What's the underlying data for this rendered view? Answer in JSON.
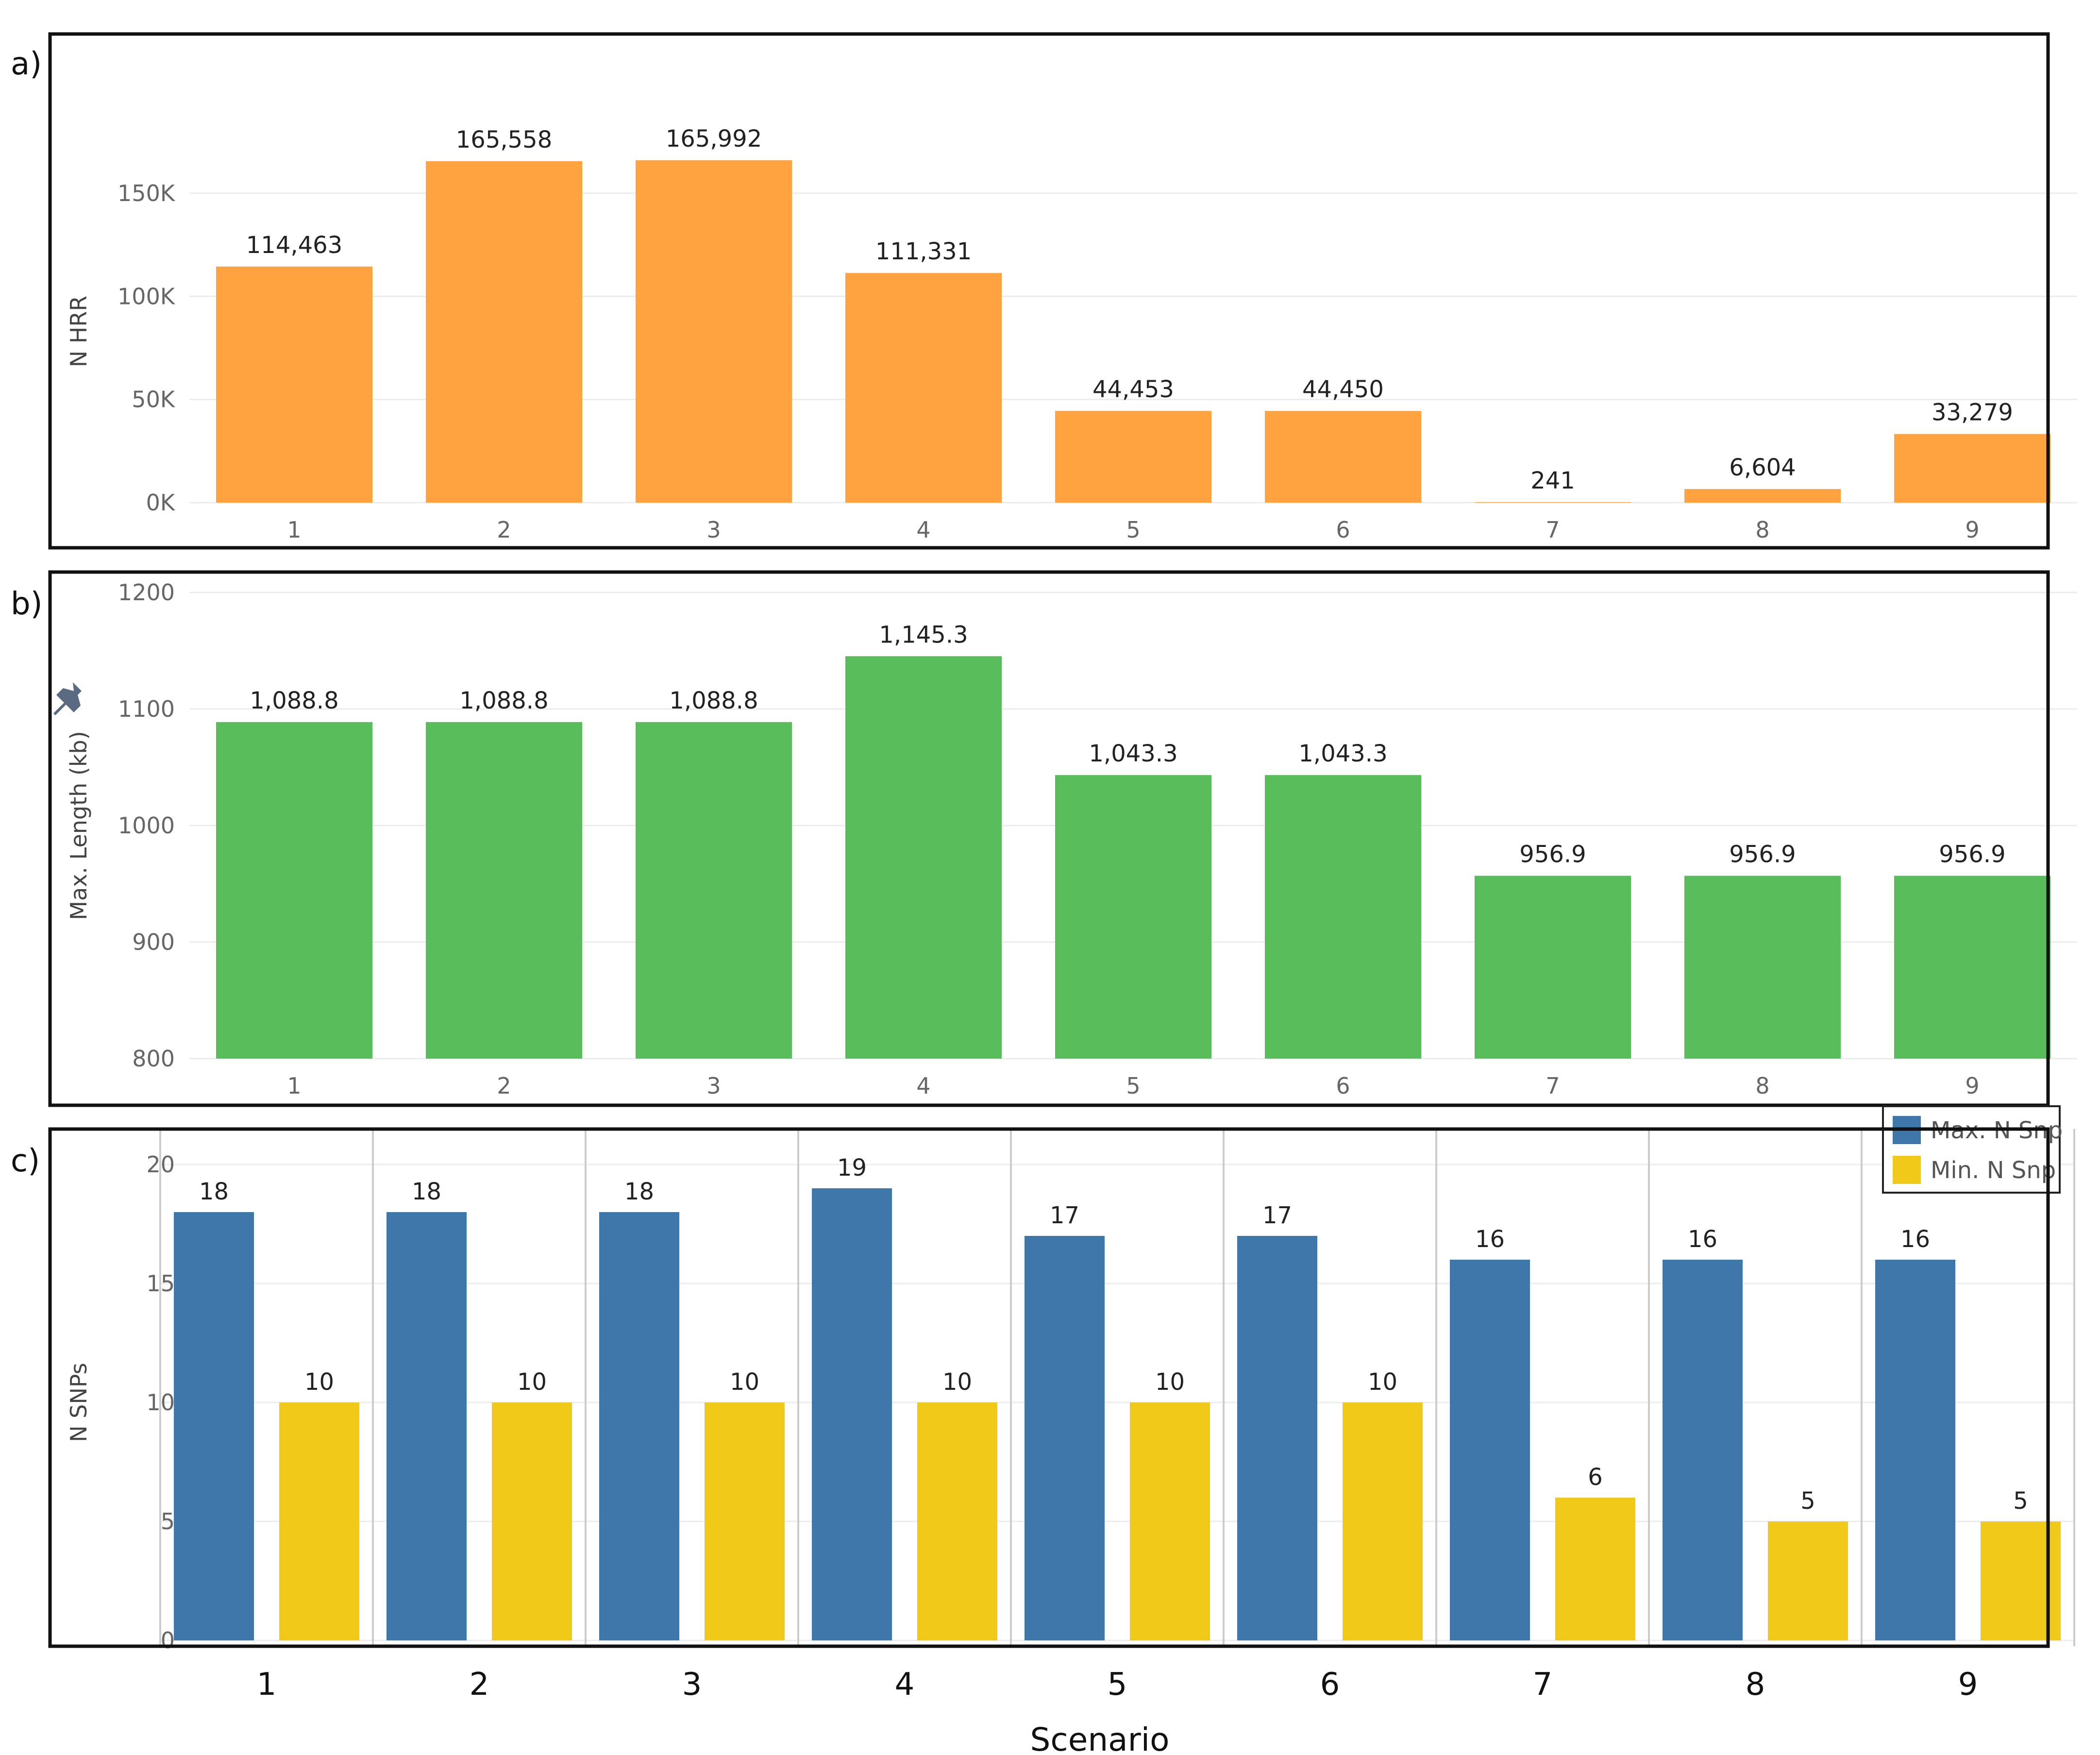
{
  "figure": {
    "x_title": "Scenario"
  },
  "chart_data": [
    {
      "panel_label": "a)",
      "type": "bar",
      "categories": [
        "1",
        "2",
        "3",
        "4",
        "5",
        "6",
        "7",
        "8",
        "9"
      ],
      "values": [
        114463,
        165558,
        165992,
        111331,
        44453,
        44450,
        241,
        6604,
        33279
      ],
      "value_labels": [
        "114,463",
        "165,558",
        "165,992",
        "111,331",
        "44,453",
        "44,450",
        "241",
        "6,604",
        "33,279"
      ],
      "ylabel": "N HRR",
      "ylim": [
        0,
        165992
      ],
      "yticks": [
        0,
        50000,
        100000,
        150000
      ],
      "ytick_labels": [
        "0K",
        "50K",
        "100K",
        "150K"
      ],
      "color": "#FFA23F",
      "grid": true
    },
    {
      "panel_label": "b)",
      "type": "bar",
      "categories": [
        "1",
        "2",
        "3",
        "4",
        "5",
        "6",
        "7",
        "8",
        "9"
      ],
      "values": [
        1088.8,
        1088.8,
        1088.8,
        1145.3,
        1043.3,
        1043.3,
        956.9,
        956.9,
        956.9
      ],
      "value_labels": [
        "1,088.8",
        "1,088.8",
        "1,088.8",
        "1,145.3",
        "1,043.3",
        "1,043.3",
        "956.9",
        "956.9",
        "956.9"
      ],
      "ylabel": "Max. Length (kb)",
      "ylim": [
        800,
        1200
      ],
      "yticks": [
        800,
        900,
        1000,
        1100,
        1200
      ],
      "ytick_labels": [
        "800",
        "900",
        "1000",
        "1100",
        "1200"
      ],
      "color": "#59BD5C",
      "grid": true
    },
    {
      "panel_label": "c)",
      "type": "bar",
      "categories": [
        "1",
        "2",
        "3",
        "4",
        "5",
        "6",
        "7",
        "8",
        "9"
      ],
      "series": [
        {
          "name": "Max. N Snp",
          "values": [
            18,
            18,
            18,
            19,
            17,
            17,
            16,
            16,
            16
          ],
          "color": "#4077AB"
        },
        {
          "name": "Min. N Snp",
          "values": [
            10,
            10,
            10,
            10,
            10,
            10,
            6,
            5,
            5
          ],
          "color": "#F1C919"
        }
      ],
      "ylabel": "N SNPs",
      "xlabel": "Scenario",
      "ylim": [
        0,
        20
      ],
      "yticks": [
        0,
        5,
        10,
        15,
        20
      ],
      "ytick_labels": [
        "0",
        "5",
        "10",
        "15",
        "20"
      ],
      "legend_position": "top-right",
      "grid": true
    }
  ]
}
